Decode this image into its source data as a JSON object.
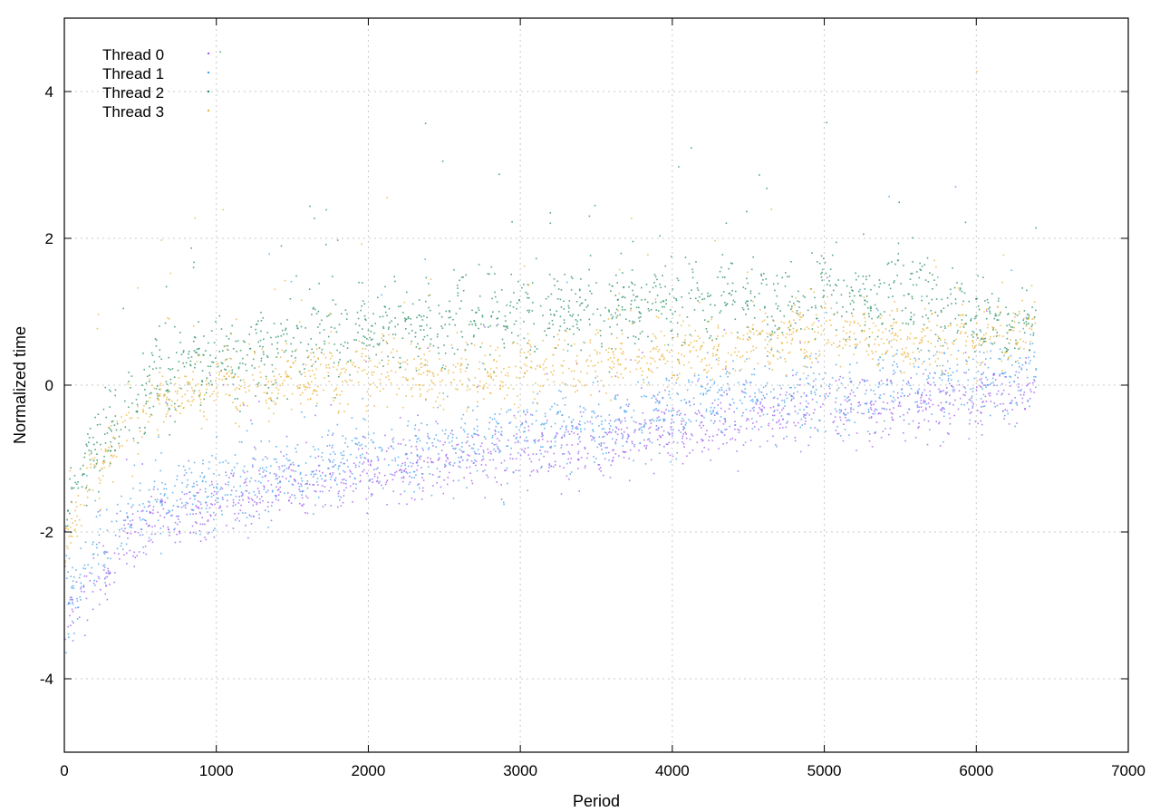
{
  "chart_data": {
    "type": "scatter",
    "xlabel": "Period",
    "ylabel": "Normalized time",
    "xlim": [
      0,
      7000
    ],
    "ylim": [
      -5,
      5
    ],
    "x_ticks": [
      0,
      1000,
      2000,
      3000,
      4000,
      5000,
      6000,
      7000
    ],
    "y_ticks": [
      -4,
      -2,
      0,
      2,
      4
    ],
    "grid": true,
    "legend_position": "top-left",
    "series": [
      {
        "name": "Thread 0",
        "color": "#9955ee",
        "x_range": [
          0,
          6390
        ],
        "trend": [
          [
            0,
            -3.2
          ],
          [
            200,
            -2.6
          ],
          [
            500,
            -1.9
          ],
          [
            1000,
            -1.6
          ],
          [
            1500,
            -1.4
          ],
          [
            2000,
            -1.2
          ],
          [
            2500,
            -1.0
          ],
          [
            3000,
            -0.9
          ],
          [
            3500,
            -0.8
          ],
          [
            4000,
            -0.6
          ],
          [
            4500,
            -0.45
          ],
          [
            5000,
            -0.35
          ],
          [
            5500,
            -0.25
          ],
          [
            6000,
            -0.15
          ],
          [
            6390,
            -0.05
          ]
        ],
        "spread": 0.4
      },
      {
        "name": "Thread 1",
        "color": "#3e9ee8",
        "x_range": [
          0,
          6390
        ],
        "trend": [
          [
            0,
            -3.0
          ],
          [
            200,
            -2.4
          ],
          [
            500,
            -1.7
          ],
          [
            1000,
            -1.35
          ],
          [
            1500,
            -1.15
          ],
          [
            2000,
            -0.95
          ],
          [
            2500,
            -0.8
          ],
          [
            3000,
            -0.65
          ],
          [
            3500,
            -0.5
          ],
          [
            4000,
            -0.35
          ],
          [
            4500,
            -0.2
          ],
          [
            5000,
            -0.1
          ],
          [
            5500,
            0.0
          ],
          [
            6000,
            0.1
          ],
          [
            6390,
            0.2
          ]
        ],
        "spread": 0.5
      },
      {
        "name": "Thread 2",
        "color": "#1f8a5a",
        "x_range": [
          0,
          6390
        ],
        "trend": [
          [
            0,
            -1.5
          ],
          [
            300,
            -0.6
          ],
          [
            600,
            0.1
          ],
          [
            1000,
            0.35
          ],
          [
            1500,
            0.55
          ],
          [
            2000,
            0.75
          ],
          [
            2500,
            0.85
          ],
          [
            3000,
            0.95
          ],
          [
            3500,
            1.05
          ],
          [
            4000,
            1.1
          ],
          [
            4500,
            1.15
          ],
          [
            5000,
            1.2
          ],
          [
            5500,
            1.25
          ],
          [
            6000,
            0.9
          ],
          [
            6390,
            0.8
          ]
        ],
        "spread": 0.5
      },
      {
        "name": "Thread 3",
        "color": "#e8b030",
        "x_range": [
          0,
          6390
        ],
        "trend": [
          [
            0,
            -2.0
          ],
          [
            300,
            -0.8
          ],
          [
            600,
            -0.2
          ],
          [
            1000,
            0.0
          ],
          [
            1500,
            0.1
          ],
          [
            2000,
            0.2
          ],
          [
            2500,
            0.1
          ],
          [
            3000,
            0.2
          ],
          [
            3500,
            0.3
          ],
          [
            4000,
            0.4
          ],
          [
            4500,
            0.6
          ],
          [
            5000,
            0.7
          ],
          [
            5500,
            0.6
          ],
          [
            6000,
            0.6
          ],
          [
            6390,
            0.75
          ]
        ],
        "spread": 0.35
      }
    ]
  }
}
